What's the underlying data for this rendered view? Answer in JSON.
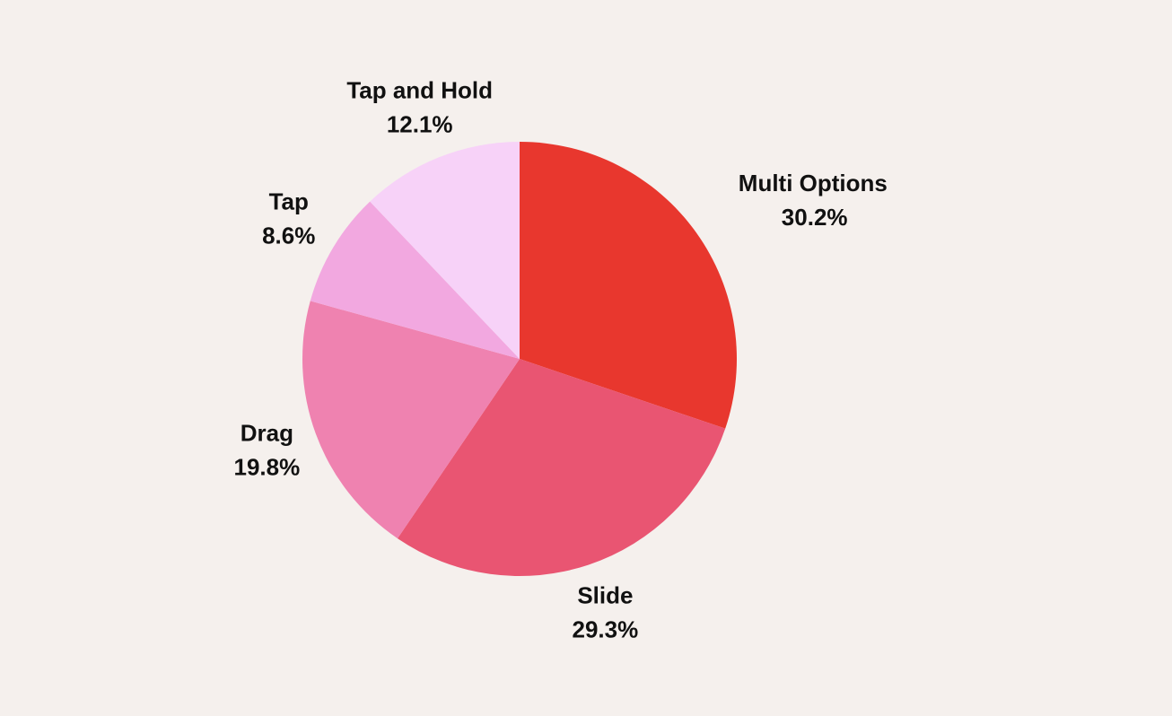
{
  "chart_data": {
    "type": "pie",
    "categories": [
      "Multi Options",
      "Slide",
      "Drag",
      "Tap",
      "Tap and Hold"
    ],
    "values": [
      30.2,
      29.3,
      19.8,
      8.6,
      12.1
    ],
    "value_labels": [
      "30.2%",
      "29.3%",
      "19.8%",
      "8.6%",
      "12.1%"
    ],
    "colors": [
      "#e8372e",
      "#e95572",
      "#ef82b0",
      "#f2a8e0",
      "#f7d2f8"
    ]
  }
}
